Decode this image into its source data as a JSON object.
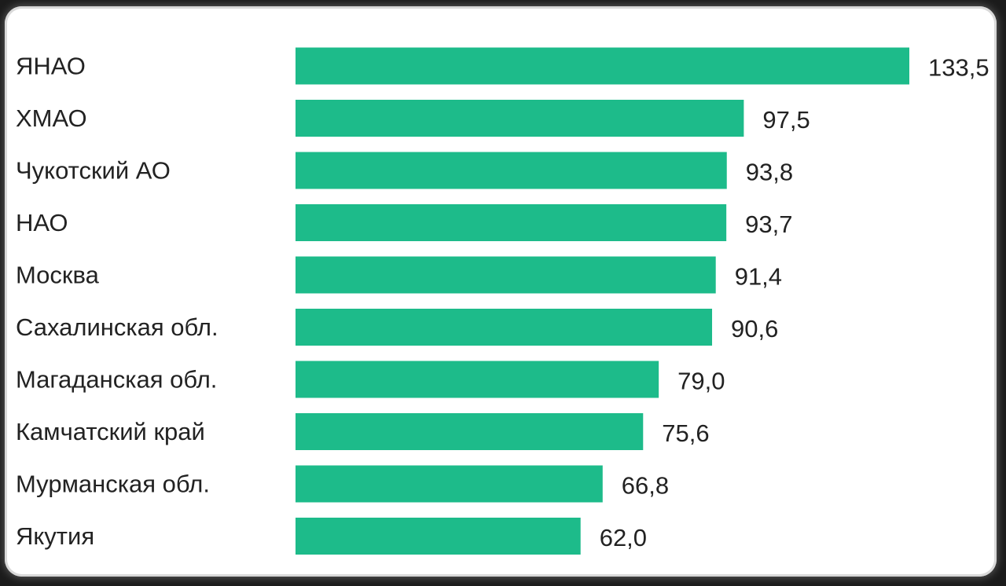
{
  "chart_data": {
    "type": "bar",
    "orientation": "horizontal",
    "categories": [
      "ЯНАО",
      "ХМАО",
      "Чукотский АО",
      "НАО",
      "Москва",
      "Сахалинская обл.",
      "Магаданская обл.",
      "Камчатский край",
      "Мурманская обл.",
      "Якутия"
    ],
    "values": [
      133.5,
      97.5,
      93.8,
      93.7,
      91.4,
      90.6,
      79.0,
      75.6,
      66.8,
      62.0
    ],
    "value_labels": [
      "133,5",
      "97,5",
      "93,8",
      "93,7",
      "91,4",
      "90,6",
      "79,0",
      "75,6",
      "66,8",
      "62,0"
    ],
    "title": "",
    "xlabel": "",
    "ylabel": "",
    "xlim": [
      0,
      133.5
    ],
    "grid": false,
    "legend": "none",
    "bar_color": "#1dbb8a"
  }
}
